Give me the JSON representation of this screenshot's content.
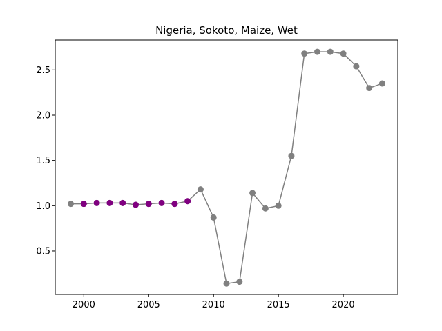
{
  "chart_data": {
    "type": "line",
    "title": "Nigeria, Sokoto, Maize, Wet",
    "xlabel": "",
    "ylabel": "",
    "xlim": [
      1997.8,
      2024.2
    ],
    "ylim": [
      0.02,
      2.83
    ],
    "grid": false,
    "x_ticks": [
      2000,
      2005,
      2010,
      2015,
      2020
    ],
    "y_ticks": [
      0.5,
      1.0,
      1.5,
      2.0,
      2.5
    ],
    "x_tick_labels": [
      "2000",
      "2005",
      "2010",
      "2015",
      "2020"
    ],
    "y_tick_labels": [
      "0.5",
      "1.0",
      "1.5",
      "2.0",
      "2.5"
    ],
    "x": [
      1999,
      2000,
      2001,
      2002,
      2003,
      2004,
      2005,
      2006,
      2007,
      2008,
      2009,
      2010,
      2011,
      2012,
      2013,
      2014,
      2015,
      2016,
      2017,
      2018,
      2019,
      2020,
      2021,
      2022,
      2023
    ],
    "series": [
      {
        "values": [
          1.02,
          1.02,
          1.03,
          1.03,
          1.03,
          1.01,
          1.02,
          1.03,
          1.02,
          1.05,
          1.18,
          0.87,
          0.14,
          0.16,
          1.14,
          0.97,
          1.0,
          1.55,
          2.68,
          2.7,
          2.7,
          2.68,
          2.54,
          2.3,
          2.35
        ],
        "color": "#808080"
      }
    ],
    "highlight": {
      "x": [
        2000,
        2001,
        2002,
        2003,
        2004,
        2005,
        2006,
        2007,
        2008
      ],
      "values": [
        1.02,
        1.03,
        1.03,
        1.03,
        1.01,
        1.02,
        1.03,
        1.02,
        1.05
      ],
      "color": "#800080"
    }
  }
}
